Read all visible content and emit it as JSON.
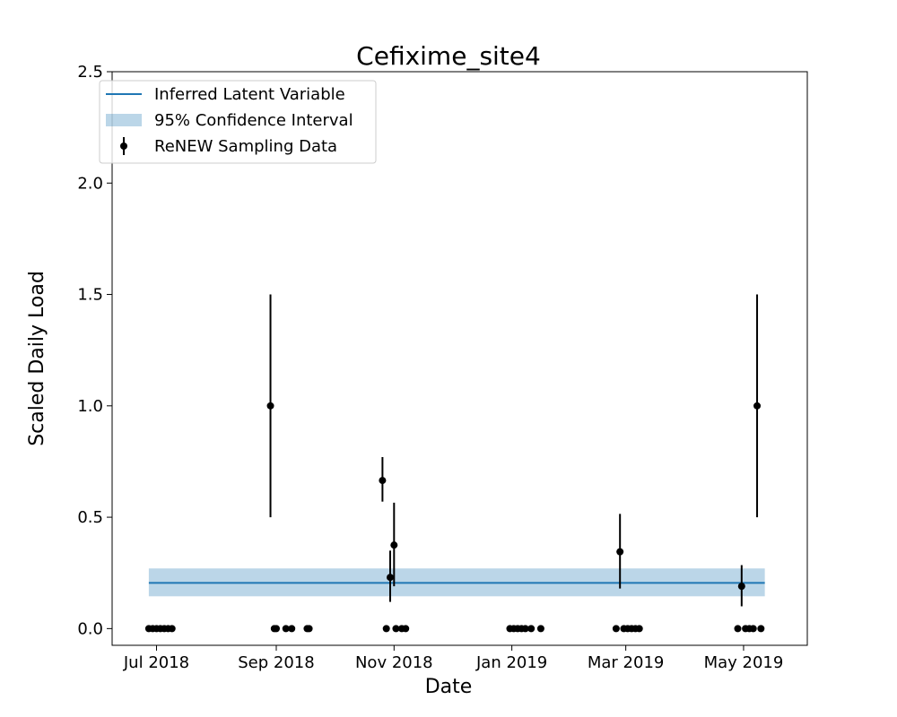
{
  "chart_data": {
    "type": "scatter",
    "title": "Cefixime_site4",
    "xlabel": "Date",
    "ylabel": "Scaled Daily Load",
    "xlim": [
      "2018-06-08",
      "2019-06-03"
    ],
    "ylim": [
      -0.075,
      2.5
    ],
    "x_ticks": [
      {
        "date": "2018-07-01",
        "label": "Jul 2018"
      },
      {
        "date": "2018-09-01",
        "label": "Sep 2018"
      },
      {
        "date": "2018-11-01",
        "label": "Nov 2018"
      },
      {
        "date": "2019-01-01",
        "label": "Jan 2019"
      },
      {
        "date": "2019-03-01",
        "label": "Mar 2019"
      },
      {
        "date": "2019-05-01",
        "label": "May 2019"
      }
    ],
    "y_ticks": [
      {
        "value": 0.0,
        "label": "0.0"
      },
      {
        "value": 0.5,
        "label": "0.5"
      },
      {
        "value": 1.0,
        "label": "1.0"
      },
      {
        "value": 1.5,
        "label": "1.5"
      },
      {
        "value": 2.0,
        "label": "2.0"
      },
      {
        "value": 2.5,
        "label": "2.5"
      }
    ],
    "grid": false,
    "legend_position": "upper-left",
    "series": [
      {
        "name": "Inferred Latent Variable",
        "kind": "line",
        "color": "#1f77b4",
        "x": [
          "2018-06-27",
          "2019-05-12"
        ],
        "y": [
          0.205,
          0.205
        ]
      },
      {
        "name": "95% Confidence Interval",
        "kind": "band",
        "color": "#1f77b4",
        "opacity": 0.3,
        "x": [
          "2018-06-27",
          "2019-05-12"
        ],
        "lower": [
          0.145,
          0.145
        ],
        "upper": [
          0.27,
          0.27
        ]
      },
      {
        "name": "ReNEW Sampling Data",
        "kind": "errorbar",
        "color": "#000000",
        "points": [
          {
            "x": "2018-06-27",
            "y": 0
          },
          {
            "x": "2018-06-29",
            "y": 0
          },
          {
            "x": "2018-07-01",
            "y": 0
          },
          {
            "x": "2018-07-03",
            "y": 0
          },
          {
            "x": "2018-07-05",
            "y": 0
          },
          {
            "x": "2018-07-07",
            "y": 0
          },
          {
            "x": "2018-07-09",
            "y": 0
          },
          {
            "x": "2018-08-29",
            "y": 1.0,
            "lo": 0.5,
            "hi": 1.5
          },
          {
            "x": "2018-08-31",
            "y": 0
          },
          {
            "x": "2018-09-01",
            "y": 0
          },
          {
            "x": "2018-09-06",
            "y": 0
          },
          {
            "x": "2018-09-09",
            "y": 0
          },
          {
            "x": "2018-09-17",
            "y": 0
          },
          {
            "x": "2018-09-18",
            "y": 0
          },
          {
            "x": "2018-10-26",
            "y": 0.665,
            "lo": 0.57,
            "hi": 0.77
          },
          {
            "x": "2018-10-28",
            "y": 0
          },
          {
            "x": "2018-10-30",
            "y": 0.23,
            "lo": 0.12,
            "hi": 0.35
          },
          {
            "x": "2018-11-01",
            "y": 0.375,
            "lo": 0.19,
            "hi": 0.565
          },
          {
            "x": "2018-11-02",
            "y": 0
          },
          {
            "x": "2018-11-05",
            "y": 0
          },
          {
            "x": "2018-11-07",
            "y": 0
          },
          {
            "x": "2018-12-31",
            "y": 0
          },
          {
            "x": "2019-01-02",
            "y": 0
          },
          {
            "x": "2019-01-04",
            "y": 0
          },
          {
            "x": "2019-01-06",
            "y": 0
          },
          {
            "x": "2019-01-08",
            "y": 0
          },
          {
            "x": "2019-01-11",
            "y": 0
          },
          {
            "x": "2019-01-16",
            "y": 0
          },
          {
            "x": "2019-02-24",
            "y": 0
          },
          {
            "x": "2019-02-26",
            "y": 0.345,
            "lo": 0.18,
            "hi": 0.515
          },
          {
            "x": "2019-02-28",
            "y": 0
          },
          {
            "x": "2019-03-02",
            "y": 0
          },
          {
            "x": "2019-03-04",
            "y": 0
          },
          {
            "x": "2019-03-06",
            "y": 0
          },
          {
            "x": "2019-03-08",
            "y": 0
          },
          {
            "x": "2019-04-28",
            "y": 0
          },
          {
            "x": "2019-04-30",
            "y": 0.19,
            "lo": 0.1,
            "hi": 0.285
          },
          {
            "x": "2019-05-02",
            "y": 0
          },
          {
            "x": "2019-05-04",
            "y": 0
          },
          {
            "x": "2019-05-06",
            "y": 0
          },
          {
            "x": "2019-05-08",
            "y": 1.0,
            "lo": 0.5,
            "hi": 1.5
          },
          {
            "x": "2019-05-10",
            "y": 0
          }
        ]
      }
    ]
  }
}
